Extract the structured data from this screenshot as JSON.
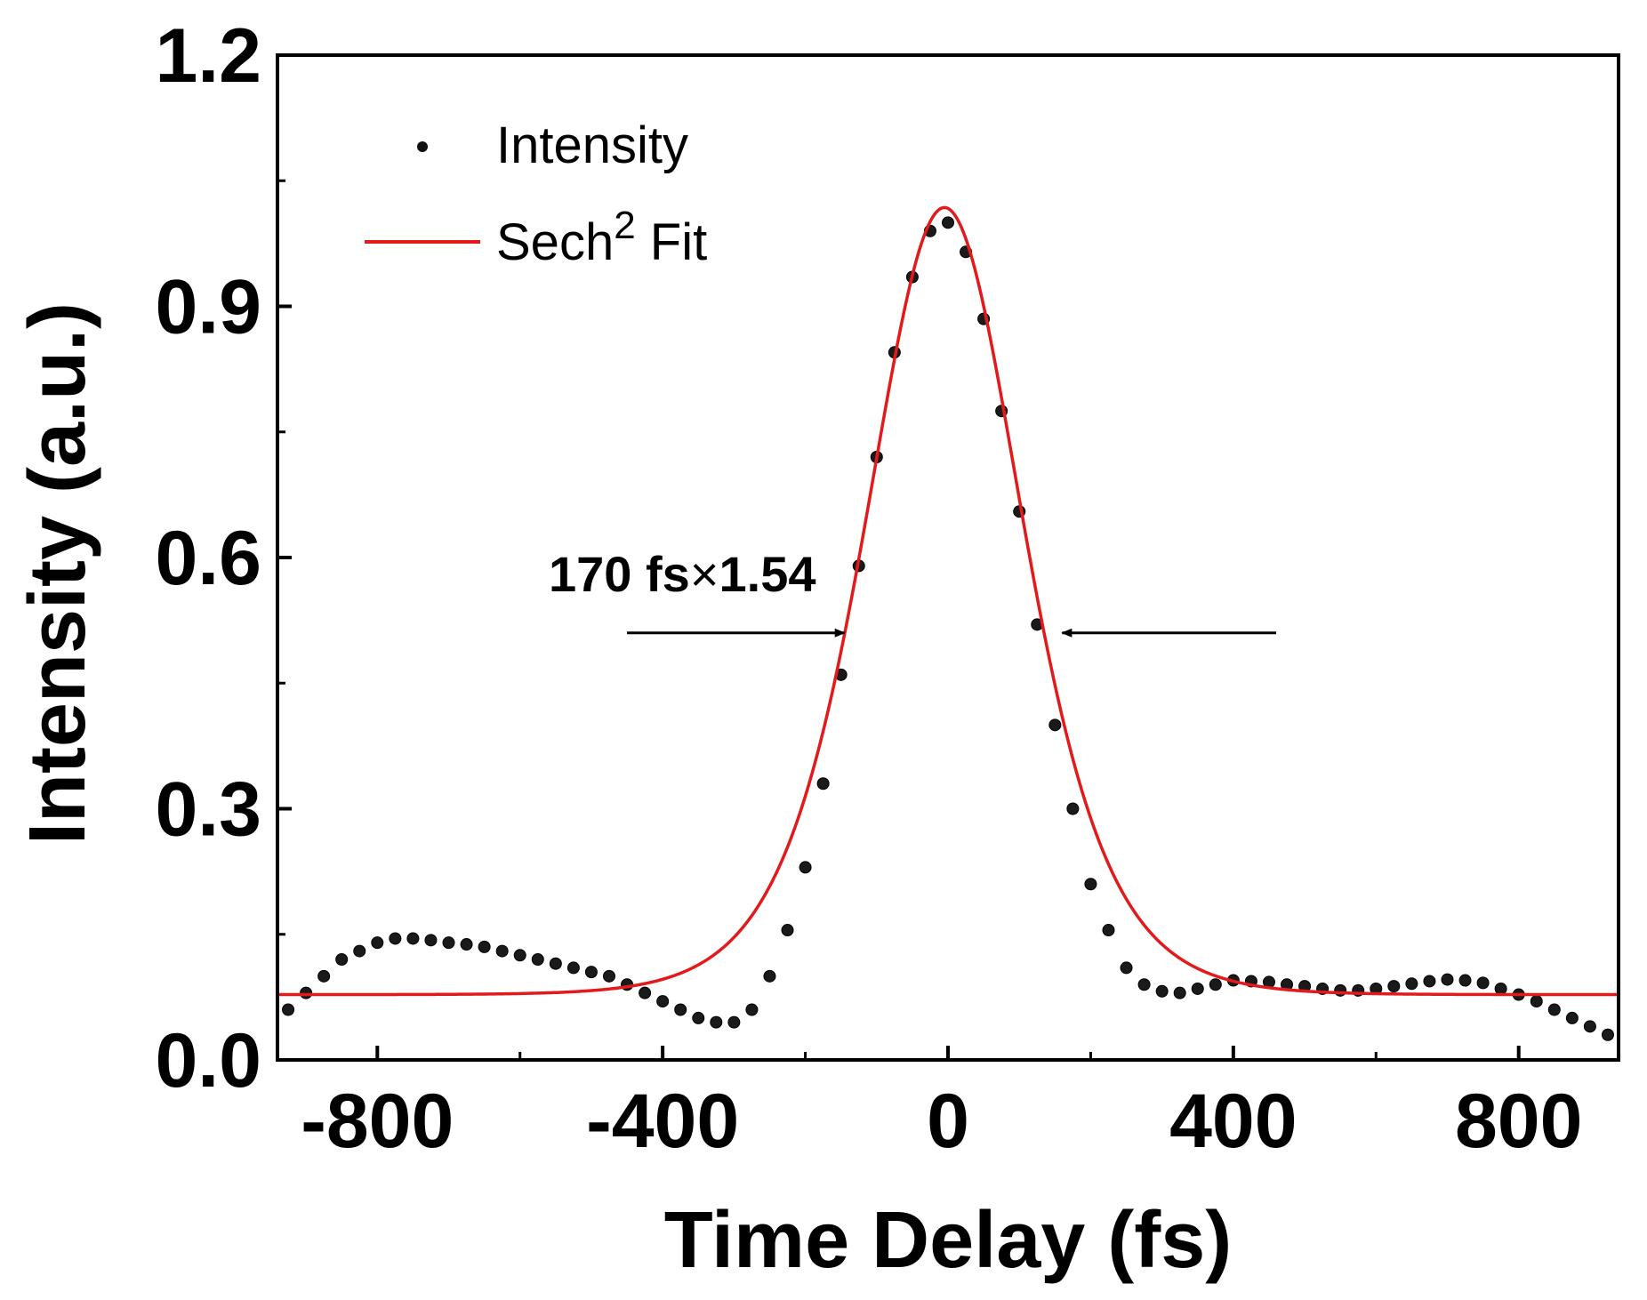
{
  "chart_data": {
    "type": "scatter",
    "title": "",
    "xlabel": "Time Delay (fs)",
    "ylabel": "Intensity (a.u.)",
    "xlim": [
      -940,
      940
    ],
    "ylim": [
      0,
      1.2
    ],
    "x_major_ticks": [
      -800,
      -400,
      0,
      400,
      800
    ],
    "x_minor_ticks": [
      -600,
      -200,
      200,
      600
    ],
    "y_major_ticks": [
      0.0,
      0.3,
      0.6,
      0.9,
      1.2
    ],
    "y_minor_ticks": [
      0.15,
      0.45,
      0.75,
      1.05
    ],
    "x_tick_labels": [
      "-800",
      "-400",
      "0",
      "400",
      "800"
    ],
    "y_tick_labels": [
      "0.0",
      "0.3",
      "0.6",
      "0.9",
      "1.2"
    ],
    "legend_position": "top-left",
    "series": [
      {
        "name": "Intensity",
        "kind": "points",
        "color": "#000000",
        "x": [
          -925,
          -900,
          -875,
          -850,
          -825,
          -800,
          -775,
          -750,
          -725,
          -700,
          -675,
          -650,
          -625,
          -600,
          -575,
          -550,
          -525,
          -500,
          -475,
          -450,
          -425,
          -400,
          -375,
          -350,
          -325,
          -300,
          -275,
          -250,
          -225,
          -200,
          -175,
          -150,
          -125,
          -100,
          -75,
          -50,
          -25,
          0,
          25,
          50,
          75,
          100,
          125,
          150,
          175,
          200,
          225,
          250,
          275,
          300,
          325,
          350,
          375,
          400,
          425,
          450,
          475,
          500,
          525,
          550,
          575,
          600,
          625,
          650,
          675,
          700,
          725,
          750,
          775,
          800,
          825,
          850,
          875,
          900,
          925
        ],
        "y": [
          0.06,
          0.08,
          0.1,
          0.12,
          0.13,
          0.14,
          0.145,
          0.145,
          0.143,
          0.14,
          0.138,
          0.135,
          0.13,
          0.125,
          0.12,
          0.115,
          0.11,
          0.105,
          0.1,
          0.09,
          0.08,
          0.07,
          0.06,
          0.05,
          0.045,
          0.045,
          0.06,
          0.1,
          0.155,
          0.23,
          0.33,
          0.46,
          0.59,
          0.72,
          0.845,
          0.935,
          0.99,
          1.0,
          0.965,
          0.885,
          0.775,
          0.655,
          0.52,
          0.4,
          0.3,
          0.21,
          0.155,
          0.11,
          0.09,
          0.082,
          0.08,
          0.085,
          0.09,
          0.095,
          0.094,
          0.093,
          0.09,
          0.088,
          0.085,
          0.083,
          0.083,
          0.085,
          0.088,
          0.091,
          0.094,
          0.096,
          0.095,
          0.092,
          0.085,
          0.078,
          0.07,
          0.06,
          0.05,
          0.04,
          0.03
        ]
      },
      {
        "name": "Sech2 Fit",
        "kind": "line",
        "color": "#e31a1c",
        "y0": 0.078,
        "amplitude": 0.94,
        "center": -5,
        "fwhm": 262
      }
    ],
    "legend": {
      "intensity_label": "Intensity",
      "fit_label_base": "Sech",
      "fit_label_superscript": "2",
      "fit_label_suffix": " Fit"
    },
    "annotations": {
      "fwhm_text_prefix": "170 fs",
      "fwhm_text_times": "×",
      "fwhm_text_suffix": "1.54",
      "arrow_y": 0.51,
      "left_arrow_x": [
        -450,
        -145
      ],
      "right_arrow_x": [
        460,
        160
      ]
    }
  }
}
